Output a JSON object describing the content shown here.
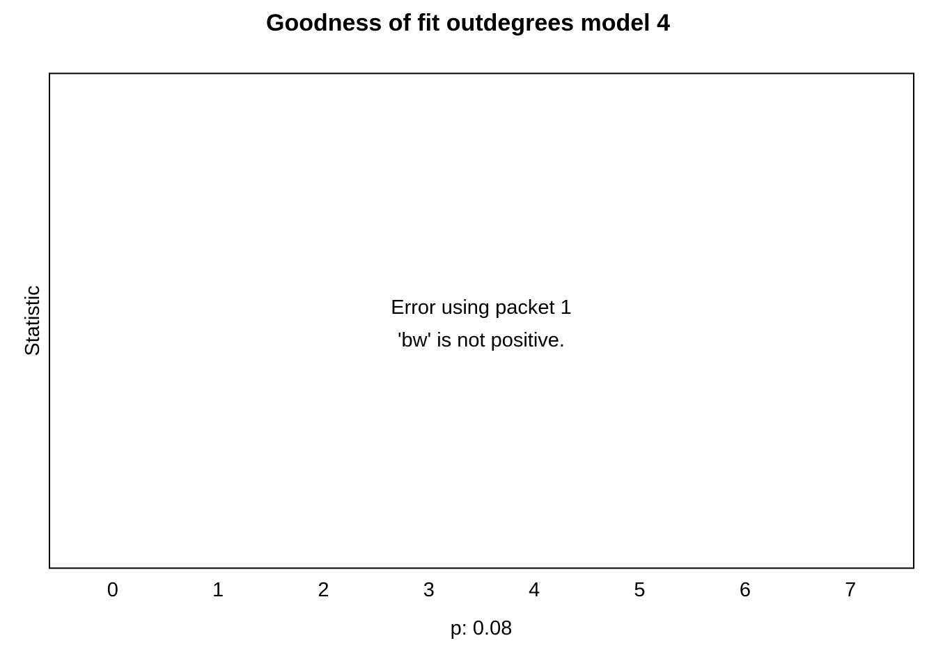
{
  "chart_data": {
    "type": "scatter",
    "title": "Goodness of fit outdegrees model 4",
    "xlabel": "p: 0.08",
    "ylabel": "Statistic",
    "categories": [
      "0",
      "1",
      "2",
      "3",
      "4",
      "5",
      "6",
      "7"
    ],
    "x": [
      0,
      1,
      2,
      3,
      4,
      5,
      6,
      7
    ],
    "xlim": [
      -0.6,
      7.6
    ],
    "series": [],
    "annotations": [
      "Error using packet 1",
      "'bw' is not positive."
    ],
    "grid": false,
    "legend": "none",
    "colors": {
      "frame": "#000000",
      "text": "#000000",
      "background": "#ffffff"
    }
  }
}
